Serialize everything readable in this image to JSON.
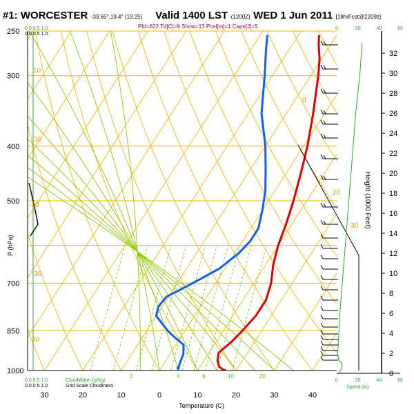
{
  "header": {
    "station": "#1: WORCESTER",
    "coords": "-33.65°,19.4° (19.25)",
    "valid": "Valid 1400 LST",
    "zulu": "(1200Z)",
    "date": "WED 1 Jun 2011",
    "forecast": "[18hrFcst@2209z]",
    "indices": "Pfd=822 Td[C]=9 Show=13 Pcel[m]=1 Cape[J]=5"
  },
  "chart_data": {
    "type": "line",
    "title": "",
    "xlabel": "Temperature (C)",
    "ylabel": "P (hPa)",
    "right_label": "Height (1000 Feet)",
    "xlim": [
      -35,
      45
    ],
    "ylim": [
      1000,
      250
    ],
    "x_ticks": [
      "30",
      "20",
      "10",
      "0",
      "10",
      "20",
      "30",
      "40"
    ],
    "x_tick_values": [
      -30,
      -20,
      -10,
      0,
      10,
      20,
      30,
      40
    ],
    "y_ticks": [
      250,
      300,
      400,
      500,
      600,
      700,
      850,
      1000
    ],
    "y_tick_labels": [
      "250",
      "300",
      "400",
      "500",
      "P (hPa)",
      "700",
      "850",
      "1000"
    ],
    "height_ticks": [
      "0",
      "2",
      "4",
      "6",
      "8",
      "10",
      "12",
      "14",
      "16",
      "18",
      "20",
      "22",
      "24",
      "26",
      "28",
      "30",
      "32"
    ],
    "speed_ticks": [
      "0",
      "20",
      "40",
      "60"
    ],
    "speed_label": "Speed (kt)",
    "cloud_labels": {
      "top_left": "0.0   0.5   1.0",
      "top_right": "0.0  0.5  1.0",
      "bottom_left": "0.0   0.5   1.0",
      "bottom_right": "0.0  0.5  1.0",
      "cloud_water": "CloudWater (g/Kg)",
      "grid_cloud": "Grid Scale Cloudiness"
    },
    "isotherm_labels": [
      "10",
      "0",
      "-10",
      "20",
      "-20",
      "30",
      "-30",
      "40"
    ],
    "mixing_ratio_labels": [
      "2",
      "4",
      "6",
      "10",
      "20"
    ],
    "series": [
      {
        "name": "Temperature",
        "color": "#e00000",
        "points": [
          [
            1000,
            17.0
          ],
          [
            985,
            15.0
          ],
          [
            960,
            13.5
          ],
          [
            930,
            12.5
          ],
          [
            890,
            14.0
          ],
          [
            850,
            15.0
          ],
          [
            800,
            16.0
          ],
          [
            750,
            16.0
          ],
          [
            700,
            14.5
          ],
          [
            650,
            12.0
          ],
          [
            600,
            10.0
          ],
          [
            550,
            8.5
          ],
          [
            500,
            6.5
          ],
          [
            450,
            4.0
          ],
          [
            400,
            1.0
          ],
          [
            350,
            -3.0
          ],
          [
            300,
            -8.0
          ],
          [
            280,
            -10.5
          ],
          [
            265,
            -13.0
          ],
          [
            255,
            -14.5
          ]
        ]
      },
      {
        "name": "Dew Point",
        "color": "#1060f0",
        "points": [
          [
            990,
            4.5
          ],
          [
            965,
            4.0
          ],
          [
            935,
            3.5
          ],
          [
            900,
            2.0
          ],
          [
            870,
            -2.0
          ],
          [
            850,
            -4.5
          ],
          [
            800,
            -10.0
          ],
          [
            770,
            -11.0
          ],
          [
            740,
            -10.5
          ],
          [
            700,
            -6.0
          ],
          [
            660,
            -1.5
          ],
          [
            620,
            1.0
          ],
          [
            590,
            2.0
          ],
          [
            560,
            2.0
          ],
          [
            520,
            0.0
          ],
          [
            480,
            -2.5
          ],
          [
            440,
            -6.0
          ],
          [
            400,
            -10.0
          ],
          [
            350,
            -16.5
          ],
          [
            300,
            -22.0
          ],
          [
            270,
            -26.0
          ],
          [
            255,
            -28.0
          ]
        ]
      }
    ],
    "wind_speed_profile": [
      [
        0,
        2
      ],
      [
        0.6,
        5
      ],
      [
        1,
        5
      ],
      [
        1.3,
        2
      ],
      [
        2,
        1
      ],
      [
        3,
        1.5
      ],
      [
        6,
        3
      ],
      [
        10,
        6
      ],
      [
        14,
        9
      ],
      [
        18,
        12
      ],
      [
        22,
        15
      ],
      [
        26,
        18
      ],
      [
        30,
        22
      ],
      [
        33,
        24
      ]
    ]
  }
}
